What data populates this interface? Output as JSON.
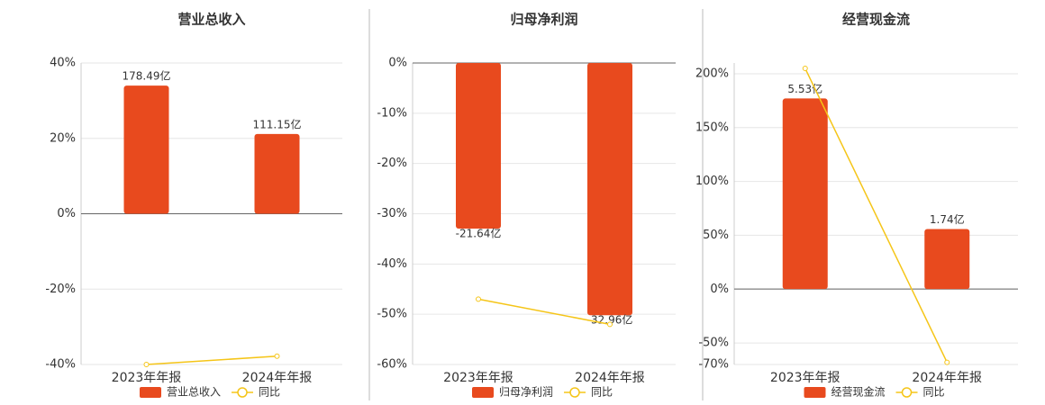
{
  "chart_data": [
    {
      "type": "bar",
      "title": "营业总收入",
      "categories": [
        "2023年年报",
        "2024年年报"
      ],
      "series": [
        {
          "name": "营业总收入",
          "type": "bar",
          "axis": "y2",
          "color": "#e84a1e",
          "values": [
            178.49,
            111.15
          ],
          "value_labels": [
            "178.49亿",
            "111.15亿"
          ]
        },
        {
          "name": "同比",
          "type": "line",
          "color": "#f5c518",
          "values": [
            -40.0,
            -37.8
          ]
        }
      ],
      "ylim": [
        -40,
        40
      ],
      "yticks": [
        {
          "value": 40,
          "label": "40%"
        },
        {
          "value": 20,
          "label": "20%"
        },
        {
          "value": 0,
          "label": "0%"
        },
        {
          "value": -20,
          "label": "-20%"
        },
        {
          "value": -40,
          "label": "-40%"
        }
      ],
      "y2lim": [
        -210,
        210
      ],
      "grid": true,
      "legend": "bottom"
    },
    {
      "type": "bar",
      "title": "归母净利润",
      "categories": [
        "2023年年报",
        "2024年年报"
      ],
      "series": [
        {
          "name": "归母净利润",
          "type": "bar",
          "axis": "y2",
          "color": "#e84a1e",
          "values": [
            -21.64,
            -32.96
          ],
          "value_labels": [
            "-21.64亿",
            "-32.96亿"
          ]
        },
        {
          "name": "同比",
          "type": "line",
          "color": "#f5c518",
          "values": [
            -47.0,
            -52.0
          ]
        }
      ],
      "ylim": [
        -60,
        0
      ],
      "yticks": [
        {
          "value": 0,
          "label": "0%"
        },
        {
          "value": -10,
          "label": "-10%"
        },
        {
          "value": -20,
          "label": "-20%"
        },
        {
          "value": -30,
          "label": "-30%"
        },
        {
          "value": -40,
          "label": "-40%"
        },
        {
          "value": -50,
          "label": "-50%"
        },
        {
          "value": -60,
          "label": "-60%"
        }
      ],
      "y2lim": [
        -39.4,
        0
      ],
      "grid": true,
      "legend": "bottom"
    },
    {
      "type": "bar",
      "title": "经营现金流",
      "categories": [
        "2023年年报",
        "2024年年报"
      ],
      "series": [
        {
          "name": "经营现金流",
          "type": "bar",
          "axis": "y2",
          "color": "#e84a1e",
          "values": [
            5.53,
            1.74
          ],
          "value_labels": [
            "5.53亿",
            "1.74亿"
          ]
        },
        {
          "name": "同比",
          "type": "line",
          "color": "#f5c518",
          "values": [
            205.0,
            -68.0
          ]
        }
      ],
      "ylim": [
        -70,
        210
      ],
      "yticks": [
        {
          "value": 200,
          "label": "200%"
        },
        {
          "value": 150,
          "label": "150%"
        },
        {
          "value": 100,
          "label": "100%"
        },
        {
          "value": 50,
          "label": "50%"
        },
        {
          "value": 0,
          "label": "0%"
        },
        {
          "value": -50,
          "label": "-50%"
        },
        {
          "value": -70,
          "label": "-70%"
        }
      ],
      "y2lim": [
        -2.19,
        6.56
      ],
      "grid": true,
      "legend": "bottom"
    }
  ]
}
